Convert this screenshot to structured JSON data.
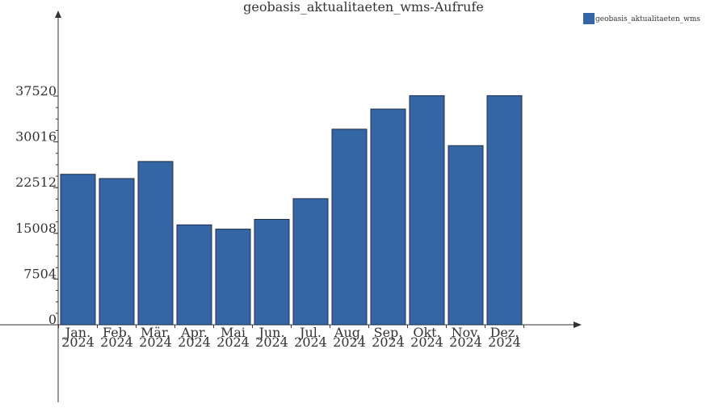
{
  "chart_data": {
    "type": "bar",
    "title": "geobasis_aktualitaeten_wms-Aufrufe",
    "xlabel": "",
    "ylabel": "",
    "categories": [
      [
        "Jan.",
        "2024"
      ],
      [
        "Feb.",
        "2024"
      ],
      [
        "Mär.",
        "2024"
      ],
      [
        "Apr.",
        "2024"
      ],
      [
        "Mai",
        "2024"
      ],
      [
        "Jun.",
        "2024"
      ],
      [
        "Jul.",
        "2024"
      ],
      [
        "Aug.",
        "2024"
      ],
      [
        "Sep.",
        "2024"
      ],
      [
        "Okt.",
        "2024"
      ],
      [
        "Nov.",
        "2024"
      ],
      [
        "Dez.",
        "2024"
      ]
    ],
    "series": [
      {
        "name": "geobasis_aktualitaeten_wms",
        "color": "#3465a4",
        "values": [
          24700,
          24000,
          26800,
          16400,
          15700,
          17300,
          20700,
          32100,
          35400,
          37600,
          29400,
          37600
        ]
      }
    ],
    "y_ticks": [
      "0",
      "7504",
      "15008",
      "22512",
      "30016",
      "37520"
    ],
    "y_tick_values": [
      0,
      7504,
      15008,
      22512,
      30016,
      37520
    ],
    "ylim": [
      0,
      37520
    ],
    "legend_position": "top-right",
    "grid": false
  }
}
